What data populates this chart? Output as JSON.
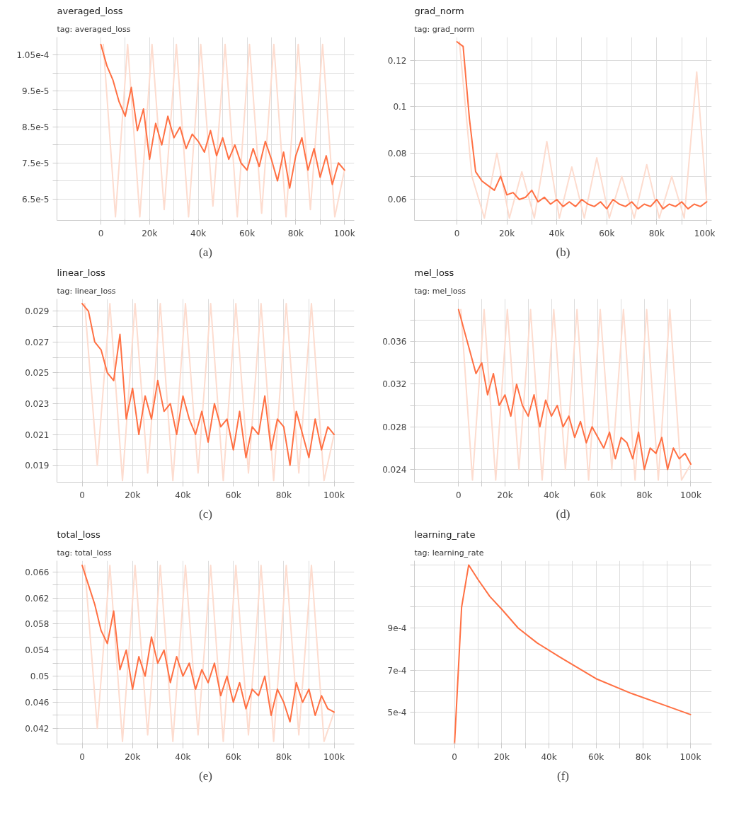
{
  "chart_data": [
    {
      "type": "line",
      "title": "averaged_loss",
      "subtitle": "tag: averaged_loss",
      "annotations": [
        "(a)"
      ],
      "grid": true,
      "x": [
        0,
        2500,
        5000,
        7500,
        10000,
        12500,
        15000,
        17500,
        20000,
        22500,
        25000,
        27500,
        30000,
        32500,
        35000,
        37500,
        40000,
        42500,
        45000,
        47500,
        50000,
        52500,
        55000,
        57500,
        60000,
        62500,
        65000,
        67500,
        70000,
        72500,
        75000,
        77500,
        80000,
        82500,
        85000,
        87500,
        90000,
        92500,
        95000,
        97500,
        100000
      ],
      "xlim": [
        -18000,
        104000
      ],
      "ylim": [
        5.9e-05,
        0.00011
      ],
      "xticks": [
        0,
        {
          "value": 10000,
          "label": null
        },
        {
          "value": 20000,
          "label": "20k"
        },
        {
          "value": 30000,
          "label": null
        },
        {
          "value": 40000,
          "label": "40k"
        },
        {
          "value": 50000,
          "label": null
        },
        {
          "value": 60000,
          "label": "60k"
        },
        {
          "value": 70000,
          "label": null
        },
        {
          "value": 80000,
          "label": "80k"
        },
        {
          "value": 90000,
          "label": null
        },
        {
          "value": 100000,
          "label": "100k"
        }
      ],
      "yticks": [
        {
          "value": 6.5e-05,
          "label": "6.5e-5"
        },
        {
          "value": 7e-05,
          "label": null
        },
        {
          "value": 7.5e-05,
          "label": "7.5e-5"
        },
        {
          "value": 8e-05,
          "label": null
        },
        {
          "value": 8.5e-05,
          "label": "8.5e-5"
        },
        {
          "value": 9e-05,
          "label": null
        },
        {
          "value": 9.5e-05,
          "label": "9.5e-5"
        },
        {
          "value": 0.0001,
          "label": null
        },
        {
          "value": 0.000105,
          "label": "1.05e-4"
        }
      ],
      "series": [
        {
          "color": "#fddccf",
          "x": [
            1000,
            6000,
            11000,
            16000,
            21000,
            26000,
            31000,
            36000,
            41000,
            46000,
            51000,
            56000,
            61000,
            66000,
            71000,
            76000,
            81000,
            86000,
            91000,
            96000,
            100000
          ],
          "values": [
            0.000108,
            6e-05,
            0.000108,
            6e-05,
            0.000108,
            6.2e-05,
            0.000108,
            6e-05,
            0.000108,
            6.3e-05,
            0.000108,
            6e-05,
            0.000108,
            6.1e-05,
            0.000108,
            6e-05,
            0.000108,
            6.2e-05,
            0.000108,
            6e-05,
            7.3e-05
          ]
        },
        {
          "color": "#ff7043",
          "values": [
            0.000108,
            0.000102,
            9.8e-05,
            9.2e-05,
            8.8e-05,
            9.6e-05,
            8.4e-05,
            9e-05,
            7.6e-05,
            8.6e-05,
            8e-05,
            8.8e-05,
            8.2e-05,
            8.5e-05,
            7.9e-05,
            8.3e-05,
            8.1e-05,
            7.8e-05,
            8.4e-05,
            7.7e-05,
            8.2e-05,
            7.6e-05,
            8e-05,
            7.5e-05,
            7.3e-05,
            7.9e-05,
            7.4e-05,
            8.1e-05,
            7.6e-05,
            7e-05,
            7.8e-05,
            6.8e-05,
            7.7e-05,
            8.2e-05,
            7.3e-05,
            7.9e-05,
            7.1e-05,
            7.7e-05,
            6.9e-05,
            7.5e-05,
            7.3e-05
          ]
        }
      ]
    },
    {
      "type": "line",
      "title": "grad_norm",
      "subtitle": "tag: grad_norm",
      "annotations": [
        "(b)"
      ],
      "grid": true,
      "x": [
        0,
        2500,
        5000,
        7500,
        10000,
        12500,
        15000,
        17500,
        20000,
        22500,
        25000,
        27500,
        30000,
        32500,
        35000,
        37500,
        40000,
        42500,
        45000,
        47500,
        50000,
        52500,
        55000,
        57500,
        60000,
        62500,
        65000,
        67500,
        70000,
        72500,
        75000,
        77500,
        80000,
        82500,
        85000,
        87500,
        90000,
        92500,
        95000,
        97500,
        100000
      ],
      "xlim": [
        -17000,
        102000
      ],
      "ylim": [
        0.051,
        0.13
      ],
      "xticks": [
        0,
        {
          "value": 10000,
          "label": null
        },
        {
          "value": 20000,
          "label": "20k"
        },
        {
          "value": 30000,
          "label": null
        },
        {
          "value": 40000,
          "label": "40k"
        },
        {
          "value": 50000,
          "label": null
        },
        {
          "value": 60000,
          "label": "60k"
        },
        {
          "value": 70000,
          "label": null
        },
        {
          "value": 80000,
          "label": "80k"
        },
        {
          "value": 90000,
          "label": null
        },
        {
          "value": 100000,
          "label": "100k"
        }
      ],
      "yticks": [
        0.06,
        {
          "value": 0.07,
          "label": null
        },
        0.08,
        {
          "value": 0.09,
          "label": null
        },
        0.1,
        {
          "value": 0.11,
          "label": null
        },
        0.12
      ],
      "series": [
        {
          "color": "#fddccf",
          "x": [
            1000,
            6000,
            11000,
            16000,
            21000,
            26000,
            31000,
            36000,
            41000,
            46000,
            51000,
            56000,
            61000,
            66000,
            71000,
            76000,
            81000,
            86000,
            91000,
            96000,
            100000
          ],
          "values": [
            0.128,
            0.07,
            0.052,
            0.08,
            0.052,
            0.072,
            0.052,
            0.085,
            0.052,
            0.074,
            0.052,
            0.078,
            0.052,
            0.07,
            0.052,
            0.075,
            0.052,
            0.07,
            0.052,
            0.115,
            0.059
          ]
        },
        {
          "color": "#ff7043",
          "values": [
            0.128,
            0.126,
            0.095,
            0.072,
            0.068,
            0.066,
            0.064,
            0.07,
            0.062,
            0.063,
            0.06,
            0.061,
            0.064,
            0.059,
            0.061,
            0.058,
            0.06,
            0.057,
            0.059,
            0.057,
            0.06,
            0.058,
            0.057,
            0.059,
            0.056,
            0.06,
            0.058,
            0.057,
            0.059,
            0.056,
            0.058,
            0.057,
            0.06,
            0.056,
            0.058,
            0.057,
            0.059,
            0.056,
            0.058,
            0.057,
            0.059
          ]
        }
      ]
    },
    {
      "type": "line",
      "title": "linear_loss",
      "subtitle": "tag: linear_loss",
      "annotations": [
        "(c)"
      ],
      "grid": true,
      "x": [
        0,
        2500,
        5000,
        7500,
        10000,
        12500,
        15000,
        17500,
        20000,
        22500,
        25000,
        27500,
        30000,
        32500,
        35000,
        37500,
        40000,
        42500,
        45000,
        47500,
        50000,
        52500,
        55000,
        57500,
        60000,
        62500,
        65000,
        67500,
        70000,
        72500,
        75000,
        77500,
        80000,
        82500,
        85000,
        87500,
        90000,
        92500,
        95000,
        97500,
        100000
      ],
      "xlim": [
        -10000,
        108000
      ],
      "ylim": [
        0.0179,
        0.0298
      ],
      "xticks": [
        0,
        {
          "value": 10000,
          "label": null
        },
        {
          "value": 20000,
          "label": "20k"
        },
        {
          "value": 30000,
          "label": null
        },
        {
          "value": 40000,
          "label": "40k"
        },
        {
          "value": 50000,
          "label": null
        },
        {
          "value": 60000,
          "label": "60k"
        },
        {
          "value": 70000,
          "label": null
        },
        {
          "value": 80000,
          "label": "80k"
        },
        {
          "value": 90000,
          "label": null
        },
        {
          "value": 100000,
          "label": "100k"
        }
      ],
      "yticks": [
        0.019,
        {
          "value": 0.02,
          "label": null
        },
        0.021,
        {
          "value": 0.022,
          "label": null
        },
        0.023,
        {
          "value": 0.024,
          "label": null
        },
        0.025,
        {
          "value": 0.026,
          "label": null
        },
        0.027,
        {
          "value": 0.028,
          "label": null
        },
        0.029
      ],
      "series": [
        {
          "color": "#fddccf",
          "x": [
            1000,
            6000,
            11000,
            16000,
            21000,
            26000,
            31000,
            36000,
            41000,
            46000,
            51000,
            56000,
            61000,
            66000,
            71000,
            76000,
            81000,
            86000,
            91000,
            96000,
            100000
          ],
          "values": [
            0.0295,
            0.019,
            0.0295,
            0.018,
            0.0295,
            0.0185,
            0.0295,
            0.018,
            0.0295,
            0.0185,
            0.0295,
            0.018,
            0.0295,
            0.0185,
            0.0295,
            0.018,
            0.0295,
            0.0185,
            0.0295,
            0.018,
            0.021
          ]
        },
        {
          "color": "#ff7043",
          "values": [
            0.0295,
            0.029,
            0.027,
            0.0265,
            0.025,
            0.0245,
            0.0275,
            0.022,
            0.024,
            0.021,
            0.0235,
            0.022,
            0.0245,
            0.0225,
            0.023,
            0.021,
            0.0235,
            0.022,
            0.021,
            0.0225,
            0.0205,
            0.023,
            0.0215,
            0.022,
            0.02,
            0.0225,
            0.0195,
            0.0215,
            0.021,
            0.0235,
            0.02,
            0.022,
            0.0215,
            0.019,
            0.0225,
            0.021,
            0.0195,
            0.022,
            0.02,
            0.0215,
            0.021
          ]
        }
      ]
    },
    {
      "type": "line",
      "title": "mel_loss",
      "subtitle": "tag: mel_loss",
      "annotations": [
        "(d)"
      ],
      "grid": true,
      "x": [
        0,
        2500,
        5000,
        7500,
        10000,
        12500,
        15000,
        17500,
        20000,
        22500,
        25000,
        27500,
        30000,
        32500,
        35000,
        37500,
        40000,
        42500,
        45000,
        47500,
        50000,
        52500,
        55000,
        57500,
        60000,
        62500,
        65000,
        67500,
        70000,
        72500,
        75000,
        77500,
        80000,
        82500,
        85000,
        87500,
        90000,
        92500,
        95000,
        97500,
        100000
      ],
      "xlim": [
        -19000,
        109000
      ],
      "ylim": [
        0.0228,
        0.04
      ],
      "xticks": [
        0,
        {
          "value": 10000,
          "label": null
        },
        {
          "value": 20000,
          "label": "20k"
        },
        {
          "value": 30000,
          "label": null
        },
        {
          "value": 40000,
          "label": "40k"
        },
        {
          "value": 50000,
          "label": null
        },
        {
          "value": 60000,
          "label": "60k"
        },
        {
          "value": 70000,
          "label": null
        },
        {
          "value": 80000,
          "label": "80k"
        },
        {
          "value": 90000,
          "label": null
        },
        {
          "value": 100000,
          "label": "100k"
        }
      ],
      "yticks": [
        0.024,
        {
          "value": 0.026,
          "label": null
        },
        0.028,
        {
          "value": 0.03,
          "label": null
        },
        0.032,
        {
          "value": 0.034,
          "label": null
        },
        0.036,
        {
          "value": 0.038,
          "label": null
        }
      ],
      "series": [
        {
          "color": "#fddccf",
          "x": [
            1000,
            6000,
            11000,
            16000,
            21000,
            26000,
            31000,
            36000,
            41000,
            46000,
            51000,
            56000,
            61000,
            66000,
            71000,
            76000,
            81000,
            86000,
            91000,
            96000,
            100000
          ],
          "values": [
            0.039,
            0.023,
            0.039,
            0.023,
            0.039,
            0.024,
            0.039,
            0.023,
            0.039,
            0.024,
            0.039,
            0.023,
            0.039,
            0.024,
            0.039,
            0.023,
            0.039,
            0.023,
            0.039,
            0.023,
            0.0245
          ]
        },
        {
          "color": "#ff7043",
          "values": [
            0.039,
            0.037,
            0.035,
            0.033,
            0.034,
            0.031,
            0.033,
            0.03,
            0.031,
            0.029,
            0.032,
            0.03,
            0.029,
            0.031,
            0.028,
            0.0305,
            0.029,
            0.03,
            0.028,
            0.029,
            0.027,
            0.0285,
            0.0265,
            0.028,
            0.027,
            0.026,
            0.0275,
            0.025,
            0.027,
            0.0265,
            0.025,
            0.0275,
            0.024,
            0.026,
            0.0255,
            0.027,
            0.024,
            0.026,
            0.025,
            0.0255,
            0.0245
          ]
        }
      ]
    },
    {
      "type": "line",
      "title": "total_loss",
      "subtitle": "tag: total_loss",
      "annotations": [
        "(e)"
      ],
      "grid": true,
      "x": [
        0,
        2500,
        5000,
        7500,
        10000,
        12500,
        15000,
        17500,
        20000,
        22500,
        25000,
        27500,
        30000,
        32500,
        35000,
        37500,
        40000,
        42500,
        45000,
        47500,
        50000,
        52500,
        55000,
        57500,
        60000,
        62500,
        65000,
        67500,
        70000,
        72500,
        75000,
        77500,
        80000,
        82500,
        85000,
        87500,
        90000,
        92500,
        95000,
        97500,
        100000
      ],
      "xlim": [
        -10000,
        108000
      ],
      "ylim": [
        0.0396,
        0.0677
      ],
      "xticks": [
        0,
        {
          "value": 10000,
          "label": null
        },
        {
          "value": 20000,
          "label": "20k"
        },
        {
          "value": 30000,
          "label": null
        },
        {
          "value": 40000,
          "label": "40k"
        },
        {
          "value": 50000,
          "label": null
        },
        {
          "value": 60000,
          "label": "60k"
        },
        {
          "value": 70000,
          "label": null
        },
        {
          "value": 80000,
          "label": "80k"
        },
        {
          "value": 90000,
          "label": null
        },
        {
          "value": 100000,
          "label": "100k"
        }
      ],
      "yticks": [
        0.042,
        {
          "value": 0.044,
          "label": null
        },
        0.046,
        {
          "value": 0.048,
          "label": null
        },
        0.05,
        {
          "value": 0.052,
          "label": null
        },
        0.054,
        {
          "value": 0.056,
          "label": null
        },
        0.058,
        {
          "value": 0.06,
          "label": null
        },
        0.062,
        {
          "value": 0.064,
          "label": null
        },
        0.066
      ],
      "series": [
        {
          "color": "#fddccf",
          "x": [
            1000,
            6000,
            11000,
            16000,
            21000,
            26000,
            31000,
            36000,
            41000,
            46000,
            51000,
            56000,
            61000,
            66000,
            71000,
            76000,
            81000,
            86000,
            91000,
            96000,
            100000
          ],
          "values": [
            0.067,
            0.042,
            0.067,
            0.04,
            0.067,
            0.041,
            0.067,
            0.04,
            0.067,
            0.041,
            0.067,
            0.04,
            0.067,
            0.041,
            0.067,
            0.04,
            0.067,
            0.041,
            0.067,
            0.04,
            0.0445
          ]
        },
        {
          "color": "#ff7043",
          "values": [
            0.067,
            0.064,
            0.061,
            0.057,
            0.055,
            0.06,
            0.051,
            0.054,
            0.048,
            0.053,
            0.05,
            0.056,
            0.052,
            0.054,
            0.049,
            0.053,
            0.05,
            0.052,
            0.048,
            0.051,
            0.049,
            0.052,
            0.047,
            0.05,
            0.046,
            0.049,
            0.045,
            0.048,
            0.047,
            0.05,
            0.044,
            0.048,
            0.046,
            0.043,
            0.049,
            0.046,
            0.048,
            0.044,
            0.047,
            0.045,
            0.0445
          ]
        }
      ]
    },
    {
      "type": "line",
      "title": "learning_rate",
      "subtitle": "tag: learning_rate",
      "annotations": [
        "(f)"
      ],
      "grid": true,
      "x": [
        0,
        3000,
        6000,
        10000,
        15000,
        20000,
        27000,
        35000,
        45000,
        60000,
        75000,
        90000,
        100000
      ],
      "xlim": [
        -17000,
        109000
      ],
      "ylim": [
        0.00035,
        0.00122
      ],
      "xticks": [
        0,
        {
          "value": 10000,
          "label": null
        },
        {
          "value": 20000,
          "label": "20k"
        },
        {
          "value": 30000,
          "label": null
        },
        {
          "value": 40000,
          "label": "40k"
        },
        {
          "value": 50000,
          "label": null
        },
        {
          "value": 60000,
          "label": "60k"
        },
        {
          "value": 70000,
          "label": null
        },
        {
          "value": 80000,
          "label": "80k"
        },
        {
          "value": 90000,
          "label": null
        },
        {
          "value": 100000,
          "label": "100k"
        }
      ],
      "yticks": [
        {
          "value": 0.0005,
          "label": "5e-4"
        },
        {
          "value": 0.0006,
          "label": null
        },
        {
          "value": 0.0007,
          "label": "7e-4"
        },
        {
          "value": 0.0008,
          "label": null
        },
        {
          "value": 0.0009,
          "label": "9e-4"
        },
        {
          "value": 0.001,
          "label": null
        },
        {
          "value": 0.0011,
          "label": null
        },
        {
          "value": 0.0012,
          "label": null
        }
      ],
      "series": [
        {
          "color": "#ff7043",
          "values": [
            0.00035,
            0.001,
            0.0012,
            0.00113,
            0.00105,
            0.00099,
            0.0009,
            0.00083,
            0.00076,
            0.00066,
            0.00059,
            0.00053,
            0.00049
          ]
        }
      ]
    }
  ]
}
